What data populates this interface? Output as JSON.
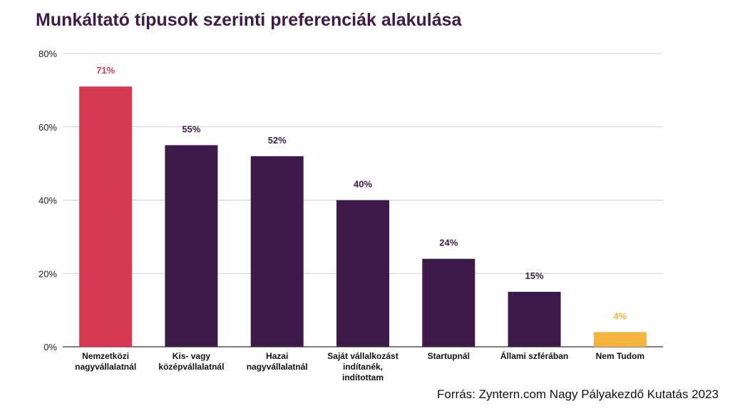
{
  "chart_data": {
    "type": "bar",
    "title": "Munkáltató típusok szerinti preferenciák alakulása",
    "categories": [
      [
        "Nemzetközi",
        "nagyvállalatnál"
      ],
      [
        "Kis- vagy",
        "középvállalatnál"
      ],
      [
        "Hazai",
        "nagyvállalatnál"
      ],
      [
        "Saját vállalkozást",
        "indítanék,",
        "indítottam"
      ],
      [
        "Startupnál"
      ],
      [
        "Állami szférában"
      ],
      [
        "Nem Tudom"
      ]
    ],
    "values": [
      71,
      55,
      52,
      40,
      24,
      15,
      4
    ],
    "value_labels": [
      "71%",
      "55%",
      "52%",
      "40%",
      "24%",
      "15%",
      "4%"
    ],
    "bar_colors": [
      "#d63a52",
      "#3d1a47",
      "#3d1a47",
      "#3d1a47",
      "#3d1a47",
      "#3d1a47",
      "#f3b33d"
    ],
    "label_colors": [
      "#d63a52",
      "#3d1a47",
      "#3d1a47",
      "#3d1a47",
      "#3d1a47",
      "#3d1a47",
      "#f3b33d"
    ],
    "ylim": [
      0,
      80
    ],
    "yticks": [
      0,
      20,
      40,
      60,
      80
    ],
    "ytick_labels": [
      "0%",
      "20%",
      "40%",
      "60%",
      "80%"
    ],
    "grid": true,
    "xlabel": "",
    "ylabel": ""
  },
  "footer": {
    "source": "Forrás: Zyntern.com Nagy Pályakezdő Kutatás 2023"
  }
}
